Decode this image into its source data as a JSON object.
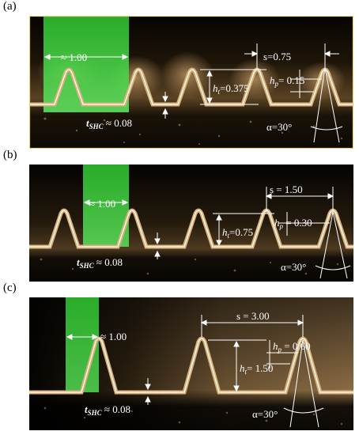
{
  "figure": {
    "panels": [
      {
        "label": "(a)",
        "width_label": "≈ 1.00",
        "spacing_label": "s=0.75",
        "hp_label": "h",
        "hp_sub": "p",
        "hp_value": "= 0.15",
        "ht_label": "h",
        "ht_sub": "t",
        "ht_value": "=0.375",
        "tshc_label": "t",
        "tshc_sub": "SHC",
        "tshc_value": " ≈ 0.08",
        "alpha_label": "α=30°"
      },
      {
        "label": "(b)",
        "width_label": "≈ 1.00",
        "spacing_label": "s = 1.50",
        "hp_label": "h",
        "hp_sub": "p",
        "hp_value": " = 0.30",
        "ht_label": "h",
        "ht_sub": "t",
        "ht_value": "=0.75",
        "tshc_label": "t",
        "tshc_sub": "SHC",
        "tshc_value": " ≈ 0.08",
        "alpha_label": "α=30°"
      },
      {
        "label": "(c)",
        "width_label": "≈ 1.00",
        "spacing_label": "s = 3.00",
        "hp_label": "h",
        "hp_sub": "p",
        "hp_value": " = 0.60",
        "ht_label": "h",
        "ht_sub": "t",
        "ht_value": "= 1.50",
        "tshc_label": "t",
        "tshc_sub": "SHC",
        "tshc_value": " ≈ 0.08",
        "alpha_label": "α=30°"
      }
    ],
    "colors": {
      "background": "#0a0805",
      "coating": "#c9a16a",
      "highlight": "#3fdc3f",
      "outline": "#ffffff",
      "frame_a": "#e8d27a"
    }
  }
}
